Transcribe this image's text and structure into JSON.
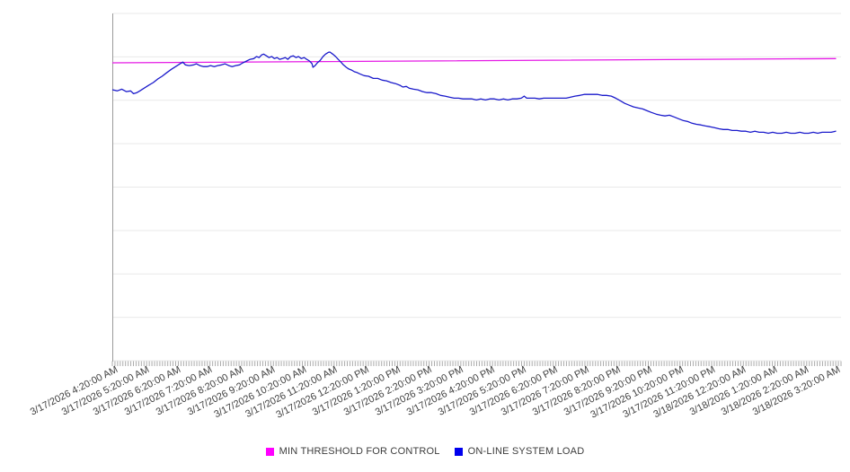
{
  "chart_data": {
    "type": "line",
    "title": "",
    "xlabel": "",
    "ylabel": "",
    "y_axis": {
      "labels_visible": false,
      "range": [
        0,
        100
      ],
      "gridline_step": 12.5,
      "grid_on": true
    },
    "x_tick_labels": [
      "3/17/2026 4:20:00 AM",
      "3/17/2026 5:20:00 AM",
      "3/17/2026 6:20:00 AM",
      "3/17/2026 7:20:00 AM",
      "3/17/2026 8:20:00 AM",
      "3/17/2026 9:20:00 AM",
      "3/17/2026 10:20:00 AM",
      "3/17/2026 11:20:00 AM",
      "3/17/2026 12:20:00 PM",
      "3/17/2026 1:20:00 PM",
      "3/17/2026 2:20:00 PM",
      "3/17/2026 3:20:00 PM",
      "3/17/2026 4:20:00 PM",
      "3/17/2026 5:20:00 PM",
      "3/17/2026 6:20:00 PM",
      "3/17/2026 7:20:00 PM",
      "3/17/2026 8:20:00 PM",
      "3/17/2026 9:20:00 PM",
      "3/17/2026 10:20:00 PM",
      "3/17/2026 11:20:00 PM",
      "3/18/2026 12:20:00 AM",
      "3/18/2026 1:20:00 AM",
      "3/18/2026 2:20:00 AM",
      "3/18/2026 3:20:00 AM"
    ],
    "x_range_hours": [
      0,
      23
    ],
    "minor_ticks_per_hour": 12,
    "series": [
      {
        "name": "MIN THRESHOLD FOR CONTROL",
        "color": "#e51ae5",
        "points": [
          [
            0,
            85.8
          ],
          [
            23,
            87.0
          ]
        ]
      },
      {
        "name": "ON-LINE SYSTEM LOAD",
        "color": "#1a1acb",
        "points": [
          [
            0,
            78.0
          ],
          [
            0.14,
            77.7
          ],
          [
            0.29,
            78.2
          ],
          [
            0.43,
            77.5
          ],
          [
            0.57,
            77.7
          ],
          [
            0.66,
            76.9
          ],
          [
            0.77,
            77.2
          ],
          [
            0.86,
            77.7
          ],
          [
            1,
            78.5
          ],
          [
            1.14,
            79.3
          ],
          [
            1.29,
            80.1
          ],
          [
            1.43,
            81.1
          ],
          [
            1.57,
            81.9
          ],
          [
            1.71,
            82.9
          ],
          [
            1.86,
            83.9
          ],
          [
            2,
            84.7
          ],
          [
            2.14,
            85.5
          ],
          [
            2.23,
            86
          ],
          [
            2.31,
            85.2
          ],
          [
            2.43,
            85
          ],
          [
            2.57,
            85.2
          ],
          [
            2.66,
            85.5
          ],
          [
            2.77,
            85
          ],
          [
            2.89,
            84.7
          ],
          [
            3,
            84.7
          ],
          [
            3.11,
            85
          ],
          [
            3.23,
            84.7
          ],
          [
            3.34,
            85
          ],
          [
            3.46,
            85.2
          ],
          [
            3.57,
            85.5
          ],
          [
            3.69,
            85
          ],
          [
            3.8,
            84.7
          ],
          [
            3.91,
            85
          ],
          [
            4.03,
            85.2
          ],
          [
            4.14,
            85.8
          ],
          [
            4.26,
            86.3
          ],
          [
            4.37,
            86.8
          ],
          [
            4.49,
            87
          ],
          [
            4.57,
            87.6
          ],
          [
            4.66,
            87.3
          ],
          [
            4.74,
            88.1
          ],
          [
            4.8,
            88.3
          ],
          [
            4.89,
            87.8
          ],
          [
            4.97,
            87.3
          ],
          [
            5.06,
            87.6
          ],
          [
            5.14,
            87
          ],
          [
            5.23,
            87.3
          ],
          [
            5.31,
            86.8
          ],
          [
            5.4,
            87
          ],
          [
            5.49,
            87.3
          ],
          [
            5.57,
            86.8
          ],
          [
            5.66,
            87.6
          ],
          [
            5.74,
            87.8
          ],
          [
            5.83,
            87.3
          ],
          [
            5.91,
            87.6
          ],
          [
            6,
            87
          ],
          [
            6.09,
            87.3
          ],
          [
            6.17,
            86.8
          ],
          [
            6.26,
            86.3
          ],
          [
            6.34,
            85.5
          ],
          [
            6.37,
            84.5
          ],
          [
            6.43,
            84.9
          ],
          [
            6.51,
            85.8
          ],
          [
            6.6,
            86.5
          ],
          [
            6.69,
            87.6
          ],
          [
            6.77,
            88.3
          ],
          [
            6.86,
            88.8
          ],
          [
            6.91,
            88.9
          ],
          [
            7,
            88.3
          ],
          [
            7.09,
            87.6
          ],
          [
            7.17,
            86.8
          ],
          [
            7.26,
            86
          ],
          [
            7.34,
            85.2
          ],
          [
            7.43,
            84.5
          ],
          [
            7.51,
            84
          ],
          [
            7.6,
            83.7
          ],
          [
            7.69,
            83.2
          ],
          [
            7.77,
            83
          ],
          [
            7.86,
            82.6
          ],
          [
            8,
            82.1
          ],
          [
            8.14,
            81.9
          ],
          [
            8.29,
            81.3
          ],
          [
            8.43,
            81.3
          ],
          [
            8.57,
            80.8
          ],
          [
            8.71,
            80.6
          ],
          [
            8.86,
            80.1
          ],
          [
            9,
            79.8
          ],
          [
            9.14,
            79.3
          ],
          [
            9.23,
            78.8
          ],
          [
            9.34,
            79
          ],
          [
            9.43,
            78.5
          ],
          [
            9.57,
            78.2
          ],
          [
            9.71,
            78
          ],
          [
            9.86,
            77.5
          ],
          [
            10,
            77.2
          ],
          [
            10.14,
            77.2
          ],
          [
            10.29,
            76.9
          ],
          [
            10.43,
            76.4
          ],
          [
            10.57,
            76.2
          ],
          [
            10.71,
            75.9
          ],
          [
            10.86,
            75.6
          ],
          [
            11,
            75.6
          ],
          [
            11.14,
            75.4
          ],
          [
            11.29,
            75.4
          ],
          [
            11.43,
            75.4
          ],
          [
            11.57,
            75.1
          ],
          [
            11.71,
            75.4
          ],
          [
            11.86,
            75.1
          ],
          [
            12,
            75.4
          ],
          [
            12.14,
            75.4
          ],
          [
            12.29,
            75.1
          ],
          [
            12.43,
            75.4
          ],
          [
            12.57,
            75.1
          ],
          [
            12.71,
            75.4
          ],
          [
            12.86,
            75.4
          ],
          [
            13,
            75.6
          ],
          [
            13.09,
            76.2
          ],
          [
            13.17,
            75.6
          ],
          [
            13.29,
            75.6
          ],
          [
            13.43,
            75.6
          ],
          [
            13.57,
            75.4
          ],
          [
            13.71,
            75.6
          ],
          [
            13.86,
            75.6
          ],
          [
            14,
            75.6
          ],
          [
            14.14,
            75.6
          ],
          [
            14.29,
            75.6
          ],
          [
            14.43,
            75.6
          ],
          [
            14.57,
            75.9
          ],
          [
            14.71,
            76.2
          ],
          [
            14.86,
            76.4
          ],
          [
            15,
            76.7
          ],
          [
            15.14,
            76.7
          ],
          [
            15.29,
            76.7
          ],
          [
            15.43,
            76.7
          ],
          [
            15.57,
            76.4
          ],
          [
            15.71,
            76.4
          ],
          [
            15.86,
            76.2
          ],
          [
            16,
            75.6
          ],
          [
            16.14,
            74.9
          ],
          [
            16.29,
            74.1
          ],
          [
            16.43,
            73.6
          ],
          [
            16.57,
            73.1
          ],
          [
            16.71,
            72.8
          ],
          [
            16.86,
            72.5
          ],
          [
            17,
            72
          ],
          [
            17.14,
            71.5
          ],
          [
            17.29,
            71
          ],
          [
            17.43,
            70.7
          ],
          [
            17.57,
            70.5
          ],
          [
            17.71,
            70.7
          ],
          [
            17.86,
            70.2
          ],
          [
            18,
            69.7
          ],
          [
            18.14,
            69.2
          ],
          [
            18.29,
            68.9
          ],
          [
            18.43,
            68.4
          ],
          [
            18.57,
            68.1
          ],
          [
            18.71,
            67.9
          ],
          [
            18.86,
            67.6
          ],
          [
            19,
            67.4
          ],
          [
            19.14,
            67.1
          ],
          [
            19.29,
            66.8
          ],
          [
            19.43,
            66.6
          ],
          [
            19.57,
            66.6
          ],
          [
            19.71,
            66.3
          ],
          [
            19.86,
            66.3
          ],
          [
            20,
            66.1
          ],
          [
            20.14,
            66.1
          ],
          [
            20.29,
            65.8
          ],
          [
            20.43,
            66.1
          ],
          [
            20.57,
            65.8
          ],
          [
            20.71,
            65.8
          ],
          [
            20.86,
            65.5
          ],
          [
            21,
            65.8
          ],
          [
            21.14,
            65.5
          ],
          [
            21.29,
            65.5
          ],
          [
            21.43,
            65.8
          ],
          [
            21.57,
            65.5
          ],
          [
            21.71,
            65.5
          ],
          [
            21.86,
            65.8
          ],
          [
            22,
            65.5
          ],
          [
            22.14,
            65.5
          ],
          [
            22.29,
            65.8
          ],
          [
            22.43,
            65.5
          ],
          [
            22.57,
            65.8
          ],
          [
            22.71,
            65.8
          ],
          [
            22.86,
            65.8
          ],
          [
            23,
            66.1
          ]
        ]
      }
    ],
    "legend": {
      "position": "bottom",
      "items": [
        {
          "label": "MIN THRESHOLD FOR CONTROL",
          "swatch_color": "#ff00ff"
        },
        {
          "label": "ON-LINE SYSTEM LOAD",
          "swatch_color": "#0000ee"
        }
      ]
    },
    "colors": {
      "gridline": "#e9e9e9",
      "axis_line": "#9a9a9a",
      "minor_tick": "#ababab",
      "tick_label_text": "#3f3f3f",
      "background": "#ffffff"
    }
  }
}
